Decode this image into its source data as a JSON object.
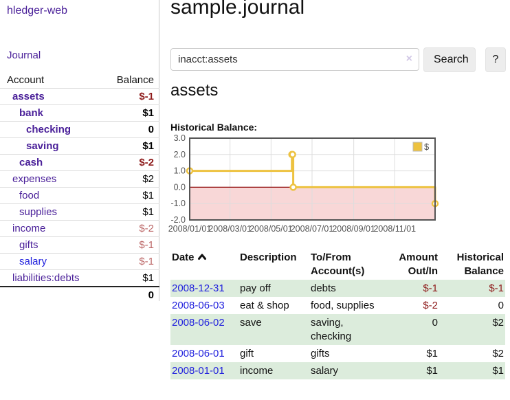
{
  "app": {
    "title": "hledger-web"
  },
  "header": {
    "title": "sample.journal"
  },
  "sidebar": {
    "journal_link": "Journal",
    "accounts_table": {
      "headers": [
        "Account",
        "Balance"
      ],
      "rows": [
        {
          "account": "assets",
          "balance": "$-1",
          "indent": 1,
          "bold": true,
          "negative": true
        },
        {
          "account": "bank",
          "balance": "$1",
          "indent": 2,
          "bold": true,
          "negative": false
        },
        {
          "account": "checking",
          "balance": "0",
          "indent": 3,
          "bold": true,
          "negative": false
        },
        {
          "account": "saving",
          "balance": "$1",
          "indent": 3,
          "bold": true,
          "negative": false
        },
        {
          "account": "cash",
          "balance": "$-2",
          "indent": 2,
          "bold": true,
          "negative": true
        },
        {
          "account": "expenses",
          "balance": "$2",
          "indent": 1,
          "bold": false,
          "negative": false
        },
        {
          "account": "food",
          "balance": "$1",
          "indent": 2,
          "bold": false,
          "negative": false
        },
        {
          "account": "supplies",
          "balance": "$1",
          "indent": 2,
          "bold": false,
          "negative": false
        },
        {
          "account": "income",
          "balance": "$-2",
          "indent": 1,
          "bold": false,
          "negative": true
        },
        {
          "account": "gifts",
          "balance": "$-1",
          "indent": 2,
          "bold": false,
          "negative": true
        },
        {
          "account": "salary",
          "balance": "$-1",
          "indent": 2,
          "bold": false,
          "negative": true,
          "link_color": "blue"
        },
        {
          "account": "liabilities:debts",
          "balance": "$1",
          "indent": 1,
          "bold": false,
          "negative": false
        }
      ],
      "total": "0"
    }
  },
  "search": {
    "query": "inacct:assets",
    "clear_icon": "×",
    "button_label": "Search",
    "help_label": "?"
  },
  "account_page": {
    "heading": "assets",
    "chart_title": "Historical Balance:"
  },
  "chart_data": {
    "type": "line",
    "step": true,
    "title": "Historical Balance:",
    "series": [
      {
        "name": "$",
        "color": "#edc240",
        "points": [
          [
            "2008-01-01",
            1
          ],
          [
            "2008-06-01",
            2
          ],
          [
            "2008-06-02",
            2
          ],
          [
            "2008-06-03",
            0
          ],
          [
            "2008-12-31",
            -1
          ]
        ]
      }
    ],
    "xlim": [
      "2008-01-01",
      "2008-12-31"
    ],
    "ylim": [
      -2,
      3
    ],
    "xticks": [
      {
        "x": "2008-01-01",
        "label": "2008/01/01"
      },
      {
        "x": "2008-03-01",
        "label": "2008/03/01"
      },
      {
        "x": "2008-05-01",
        "label": "2008/05/01"
      },
      {
        "x": "2008-07-01",
        "label": "2008/07/01"
      },
      {
        "x": "2008-09-01",
        "label": "2008/09/01"
      },
      {
        "x": "2008-11-01",
        "label": "2008/11/01"
      }
    ],
    "yticks": [
      {
        "y": 3,
        "label": "3.0"
      },
      {
        "y": 2,
        "label": "2.0"
      },
      {
        "y": 1,
        "label": "1.0"
      },
      {
        "y": 0,
        "label": "0.0"
      },
      {
        "y": -1,
        "label": "-1.0"
      },
      {
        "y": -2,
        "label": "-2.0"
      }
    ],
    "legend": {
      "label": "$",
      "position": "top-right"
    },
    "grid": true,
    "colors": {
      "series": "#edc240",
      "marker_fill": "#ffffff",
      "zero_line": "#8b0000",
      "negative_region": "#f8d7d7",
      "gridline": "#dddddd",
      "border": "#545454",
      "tick_text": "#545454"
    }
  },
  "register_table": {
    "sort_icon": "chevron-up",
    "headers": {
      "date": "Date",
      "description": "Description",
      "account": "To/From Account(s)",
      "amount": "Amount Out/In",
      "balance": "Historical Balance"
    },
    "rows": [
      {
        "date": "2008-12-31",
        "description": "pay off",
        "accounts": "debts",
        "amount": "$-1",
        "balance": "$-1",
        "amount_negative": true,
        "balance_negative": true,
        "shaded": true
      },
      {
        "date": "2008-06-03",
        "description": "eat & shop",
        "accounts": "food, supplies",
        "amount": "$-2",
        "balance": "0",
        "amount_negative": true,
        "balance_negative": false,
        "shaded": false
      },
      {
        "date": "2008-06-02",
        "description": "save",
        "accounts": "saving, checking",
        "amount": "0",
        "balance": "$2",
        "amount_negative": false,
        "balance_negative": false,
        "shaded": true
      },
      {
        "date": "2008-06-01",
        "description": "gift",
        "accounts": "gifts",
        "amount": "$1",
        "balance": "$2",
        "amount_negative": false,
        "balance_negative": false,
        "shaded": false
      },
      {
        "date": "2008-01-01",
        "description": "income",
        "accounts": "salary",
        "amount": "$1",
        "balance": "$1",
        "amount_negative": false,
        "balance_negative": false,
        "shaded": true
      }
    ]
  },
  "colors": {
    "sidebar_link_purple": "#4a2099",
    "link_blue": "#2222dd",
    "negative_bold_red": "#8e1b1b",
    "negative_muted_red": "#bb6666",
    "row_shade_green": "#dcecdc",
    "button_gray": "#ededed"
  }
}
